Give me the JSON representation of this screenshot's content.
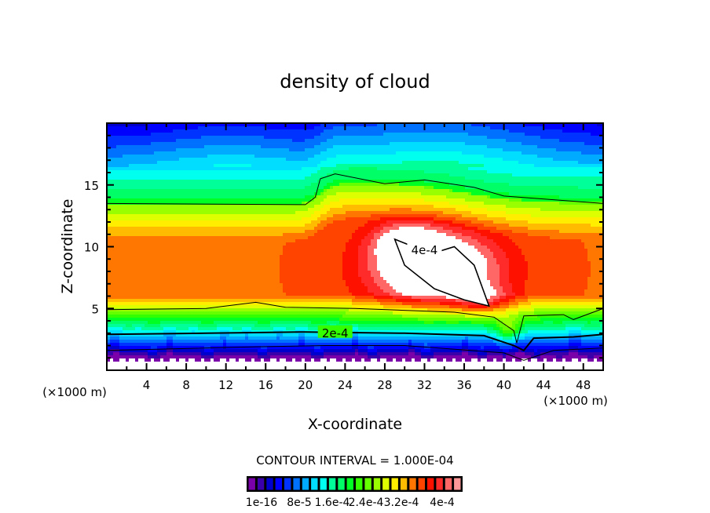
{
  "chart_data": {
    "type": "heatmap",
    "subtype": "filled-contour",
    "title": "density of cloud",
    "xlabel": "X-coordinate",
    "ylabel": "Z-coordinate",
    "x_unit_label": "(×1000 m)",
    "y_unit_label": "(×1000 m)",
    "xlim": [
      0,
      50
    ],
    "ylim": [
      0,
      20
    ],
    "x_ticks": [
      4,
      8,
      12,
      16,
      20,
      24,
      28,
      32,
      36,
      40,
      44,
      48
    ],
    "x_tick_labels": [
      "4",
      "8",
      "12",
      "16",
      "20",
      "24",
      "28",
      "32",
      "36",
      "40",
      "44",
      "48"
    ],
    "y_ticks": [
      5,
      10,
      15
    ],
    "y_tick_labels": [
      "5",
      "10",
      "15"
    ],
    "contour_interval_text": "CONTOUR INTERVAL = 1.000E-04",
    "contour_labels": [
      {
        "text": "4e-4",
        "x": 32,
        "y": 9.7
      },
      {
        "text": "2e-4",
        "x": 23,
        "y": 3.0
      }
    ],
    "colorbar": {
      "colors": [
        "#7a00aa",
        "#3a00aa",
        "#0000cc",
        "#0000ff",
        "#0033ff",
        "#0070ff",
        "#00aaff",
        "#00ddff",
        "#00ffee",
        "#00ff99",
        "#00ff66",
        "#00ff22",
        "#33ff00",
        "#66ff00",
        "#99ff00",
        "#ddff00",
        "#ffee00",
        "#ffbb00",
        "#ff7700",
        "#ff4400",
        "#ff1100",
        "#ff2a2a",
        "#ff6666",
        "#ff9999"
      ],
      "tick_labels": [
        "1e-16",
        "8e-5",
        "1.6e-4",
        "2.4e-4",
        "3.2e-4",
        "4e-4"
      ],
      "tick_values": [
        1e-16,
        8e-05,
        0.00016,
        0.00024,
        0.00032,
        0.0004
      ],
      "vmin": 0,
      "vmax": 0.00044
    },
    "field_description_levels": {
      "bands_z": [
        {
          "z_from": 16.5,
          "z_to": 20,
          "value": 0.00013
        },
        {
          "z_from": 13.5,
          "z_to": 16.5,
          "value": 0.00018
        },
        {
          "z_from": 6,
          "z_to": 13.5,
          "value": 0.00033
        },
        {
          "z_from": 3,
          "z_to": 6,
          "value": 0.00022
        },
        {
          "z_from": 1.5,
          "z_to": 3,
          "value": 0.0001
        },
        {
          "z_from": 0,
          "z_to": 1.5,
          "value": 3e-05
        }
      ],
      "max_region": {
        "x_center": 33,
        "z_center": 8,
        "value": 0.00042
      }
    }
  }
}
